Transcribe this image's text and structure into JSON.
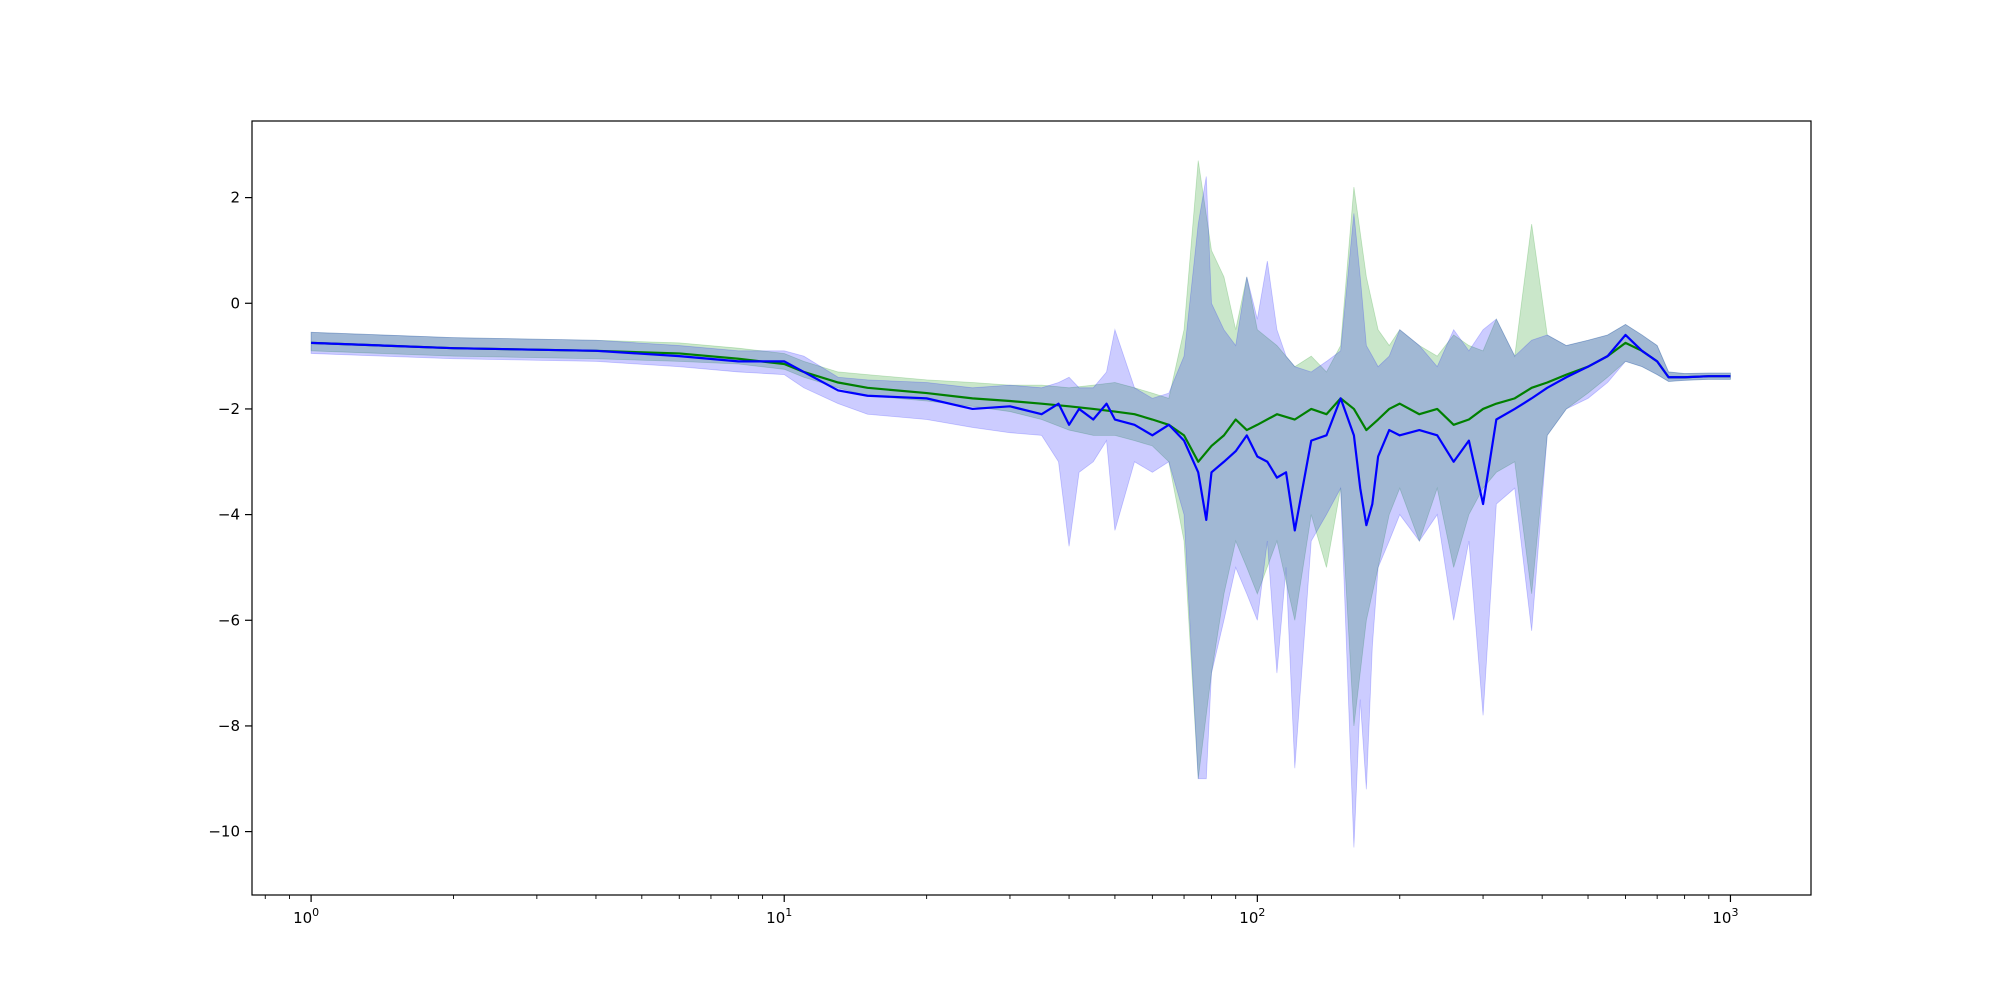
{
  "chart_data": {
    "type": "line",
    "title": "",
    "xlabel": "",
    "ylabel": "",
    "xscale": "log",
    "xlim": [
      0.75,
      1480
    ],
    "ylim": [
      -11.2,
      3.45
    ],
    "grid": false,
    "legend": "none",
    "x_ticks": [
      {
        "base": "10",
        "exp": "0",
        "value": 1
      },
      {
        "base": "10",
        "exp": "1",
        "value": 10
      },
      {
        "base": "10",
        "exp": "2",
        "value": 100
      },
      {
        "base": "10",
        "exp": "3",
        "value": 1000
      }
    ],
    "y_ticks": [
      {
        "value": 2,
        "label": "2"
      },
      {
        "value": 0,
        "label": "0"
      },
      {
        "value": -2,
        "label": "−2"
      },
      {
        "value": -4,
        "label": "−4"
      },
      {
        "value": -6,
        "label": "−6"
      },
      {
        "value": -8,
        "label": "−8"
      },
      {
        "value": -10,
        "label": "−10"
      }
    ],
    "series": [
      {
        "color": "#008000",
        "band_color": "#2ca02c",
        "band_opacity": 0.25,
        "x": [
          1,
          2,
          4,
          6,
          8,
          10,
          11,
          13,
          15,
          20,
          25,
          30,
          35,
          40,
          45,
          50,
          55,
          60,
          65,
          70,
          75,
          80,
          85,
          90,
          95,
          100,
          110,
          120,
          130,
          140,
          150,
          160,
          170,
          180,
          190,
          200,
          220,
          240,
          260,
          280,
          300,
          320,
          350,
          380,
          410,
          450,
          500,
          550,
          600,
          650,
          700,
          740,
          800,
          900,
          1000
        ],
        "y": [
          -0.75,
          -0.85,
          -0.9,
          -0.95,
          -1.05,
          -1.15,
          -1.3,
          -1.5,
          -1.6,
          -1.7,
          -1.8,
          -1.85,
          -1.9,
          -1.95,
          -2.0,
          -2.05,
          -2.1,
          -2.2,
          -2.3,
          -2.5,
          -3.0,
          -2.7,
          -2.5,
          -2.2,
          -2.4,
          -2.3,
          -2.1,
          -2.2,
          -2.0,
          -2.1,
          -1.8,
          -2.0,
          -2.4,
          -2.2,
          -2.0,
          -1.9,
          -2.1,
          -2.0,
          -2.3,
          -2.2,
          -2.0,
          -1.9,
          -1.8,
          -1.6,
          -1.5,
          -1.35,
          -1.2,
          -1.0,
          -0.75,
          -0.9,
          -1.1,
          -1.4,
          -1.4,
          -1.38,
          -1.38
        ],
        "lower": [
          -0.9,
          -1.0,
          -1.05,
          -1.1,
          -1.15,
          -1.25,
          -1.4,
          -1.6,
          -1.75,
          -1.85,
          -1.95,
          -2.05,
          -2.2,
          -2.4,
          -2.5,
          -2.5,
          -2.6,
          -2.7,
          -3.0,
          -4.5,
          -9.0,
          -7.0,
          -5.5,
          -4.5,
          -5.0,
          -5.5,
          -4.5,
          -6.0,
          -4.0,
          -5.0,
          -3.5,
          -8.0,
          -6.0,
          -5.0,
          -4.0,
          -3.5,
          -4.5,
          -3.5,
          -5.0,
          -4.0,
          -3.5,
          -3.2,
          -3.0,
          -5.5,
          -2.5,
          -2.0,
          -1.7,
          -1.4,
          -1.1,
          -1.2,
          -1.35,
          -1.48,
          -1.46,
          -1.44,
          -1.44
        ],
        "upper": [
          -0.55,
          -0.65,
          -0.7,
          -0.75,
          -0.85,
          -0.95,
          -1.1,
          -1.3,
          -1.35,
          -1.45,
          -1.5,
          -1.55,
          -1.55,
          -1.6,
          -1.55,
          -1.5,
          -1.6,
          -1.7,
          -1.8,
          -0.5,
          2.7,
          1.0,
          0.5,
          -0.5,
          0.5,
          -0.5,
          -0.8,
          -1.2,
          -1.0,
          -1.3,
          -0.8,
          2.2,
          0.5,
          -0.5,
          -0.8,
          -0.5,
          -0.8,
          -1.0,
          -0.6,
          -0.8,
          -0.9,
          -0.3,
          -1.0,
          1.5,
          -0.6,
          -0.8,
          -0.7,
          -0.6,
          -0.4,
          -0.6,
          -0.8,
          -1.3,
          -1.33,
          -1.32,
          -1.32
        ]
      },
      {
        "color": "#0000ff",
        "band_color": "#0000ff",
        "band_opacity": 0.2,
        "x": [
          1,
          2,
          4,
          6,
          8,
          10,
          11,
          13,
          15,
          20,
          25,
          30,
          35,
          38,
          40,
          42,
          45,
          48,
          50,
          55,
          60,
          65,
          70,
          75,
          78,
          80,
          85,
          90,
          95,
          100,
          105,
          110,
          115,
          120,
          130,
          140,
          150,
          160,
          165,
          170,
          175,
          180,
          190,
          200,
          220,
          240,
          260,
          280,
          300,
          320,
          350,
          380,
          410,
          450,
          500,
          550,
          600,
          650,
          700,
          740,
          800,
          900,
          1000
        ],
        "y": [
          -0.75,
          -0.85,
          -0.9,
          -1.0,
          -1.1,
          -1.1,
          -1.3,
          -1.65,
          -1.75,
          -1.8,
          -2.0,
          -1.95,
          -2.1,
          -1.9,
          -2.3,
          -2.0,
          -2.2,
          -1.9,
          -2.2,
          -2.3,
          -2.5,
          -2.3,
          -2.6,
          -3.2,
          -4.1,
          -3.2,
          -3.0,
          -2.8,
          -2.5,
          -2.9,
          -3.0,
          -3.3,
          -3.2,
          -4.3,
          -2.6,
          -2.5,
          -1.8,
          -2.5,
          -3.5,
          -4.2,
          -3.8,
          -2.9,
          -2.4,
          -2.5,
          -2.4,
          -2.5,
          -3.0,
          -2.6,
          -3.8,
          -2.2,
          -2.0,
          -1.8,
          -1.6,
          -1.4,
          -1.2,
          -1.0,
          -0.6,
          -0.9,
          -1.1,
          -1.4,
          -1.4,
          -1.38,
          -1.38
        ],
        "lower": [
          -0.95,
          -1.05,
          -1.1,
          -1.2,
          -1.3,
          -1.35,
          -1.6,
          -1.9,
          -2.1,
          -2.2,
          -2.35,
          -2.45,
          -2.5,
          -3.0,
          -4.6,
          -3.2,
          -3.0,
          -2.6,
          -4.3,
          -3.0,
          -3.2,
          -3.0,
          -4.0,
          -9.0,
          -9.0,
          -7.0,
          -6.0,
          -5.0,
          -5.5,
          -6.0,
          -4.5,
          -7.0,
          -5.0,
          -8.8,
          -4.5,
          -4.0,
          -3.5,
          -10.3,
          -7.5,
          -9.2,
          -6.5,
          -5.0,
          -4.5,
          -4.0,
          -4.5,
          -4.0,
          -6.0,
          -4.5,
          -7.8,
          -3.8,
          -3.5,
          -6.2,
          -2.5,
          -2.0,
          -1.8,
          -1.5,
          -1.1,
          -1.2,
          -1.35,
          -1.48,
          -1.46,
          -1.44,
          -1.44
        ],
        "upper": [
          -0.55,
          -0.65,
          -0.7,
          -0.8,
          -0.9,
          -0.9,
          -1.0,
          -1.4,
          -1.45,
          -1.5,
          -1.6,
          -1.55,
          -1.6,
          -1.5,
          -1.4,
          -1.6,
          -1.6,
          -1.3,
          -0.5,
          -1.6,
          -1.8,
          -1.7,
          -1.0,
          1.5,
          2.4,
          0.0,
          -0.5,
          -0.8,
          0.5,
          -0.3,
          0.8,
          -0.5,
          -1.0,
          -1.2,
          -1.3,
          -1.1,
          -0.9,
          1.7,
          0.5,
          -0.8,
          -1.0,
          -1.2,
          -1.0,
          -0.5,
          -0.8,
          -1.2,
          -0.5,
          -0.9,
          -0.5,
          -0.3,
          -1.0,
          -0.7,
          -0.6,
          -0.8,
          -0.7,
          -0.6,
          -0.4,
          -0.6,
          -0.8,
          -1.3,
          -1.33,
          -1.32,
          -1.32
        ]
      }
    ]
  }
}
